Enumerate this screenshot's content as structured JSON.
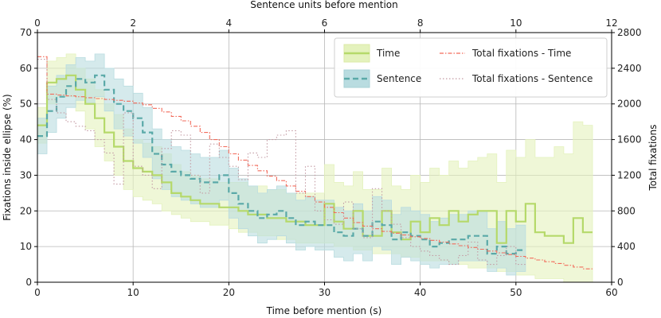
{
  "chart_data": {
    "type": "line",
    "grid": true,
    "legend_position": "top-right",
    "colors": {
      "time": "#b5d96a",
      "time_band": "#e4f2bd",
      "sentence": "#5aa9a8",
      "sentence_band": "#b9dce0",
      "total_time": "#f26b5b",
      "total_sentence": "#c39aa3",
      "grid": "#b8b8b8"
    },
    "axes": {
      "bottom": {
        "label": "Time before mention (s)",
        "range": [
          0,
          60
        ],
        "ticks": [
          0,
          10,
          20,
          30,
          40,
          50,
          60
        ]
      },
      "top": {
        "label": "Sentence units before mention",
        "range": [
          0,
          12
        ],
        "ticks": [
          0,
          2,
          4,
          6,
          8,
          10,
          12
        ]
      },
      "left": {
        "label": "Fixations inside ellipse (%)",
        "range": [
          0,
          70
        ],
        "ticks": [
          0,
          10,
          20,
          30,
          40,
          50,
          60,
          70
        ]
      },
      "right": {
        "label": "Total fixations",
        "range": [
          0,
          2800
        ],
        "ticks": [
          0,
          400,
          800,
          1200,
          1600,
          2000,
          2400,
          2800
        ]
      }
    },
    "legend": [
      {
        "key": "time",
        "label": "Time"
      },
      {
        "key": "sentence",
        "label": "Sentence"
      },
      {
        "key": "total_time",
        "label": "Total fixations - Time"
      },
      {
        "key": "total_sentence",
        "label": "Total fixations - Sentence"
      }
    ],
    "series": [
      {
        "name": "Time",
        "axis": "bottom-left",
        "step": true,
        "x": [
          0,
          1,
          2,
          3,
          4,
          5,
          6,
          7,
          8,
          9,
          10,
          11,
          12,
          13,
          14,
          15,
          16,
          17,
          18,
          19,
          20,
          21,
          22,
          23,
          24,
          25,
          26,
          27,
          28,
          29,
          30,
          31,
          32,
          33,
          34,
          35,
          36,
          37,
          38,
          39,
          40,
          41,
          42,
          43,
          44,
          45,
          46,
          47,
          48,
          49,
          50,
          51,
          52,
          53,
          54,
          55,
          56,
          57
        ],
        "values": [
          44,
          56,
          57,
          58,
          54,
          50,
          46,
          42,
          38,
          34,
          32,
          31,
          30,
          28,
          25,
          24,
          23,
          22,
          22,
          21,
          21,
          20,
          19,
          19,
          18,
          18,
          17,
          17,
          16,
          16,
          22,
          17,
          15,
          20,
          13,
          13,
          20,
          14,
          12,
          17,
          14,
          18,
          16,
          20,
          17,
          19,
          20,
          20,
          11,
          20,
          17,
          22,
          14,
          13,
          13,
          11,
          18,
          14
        ],
        "lower": [
          39,
          50,
          52,
          52,
          48,
          43,
          38,
          34,
          30,
          26,
          24,
          23,
          22,
          20,
          19,
          18,
          17,
          17,
          16,
          16,
          15,
          14,
          14,
          13,
          13,
          12,
          12,
          11,
          11,
          11,
          11,
          10,
          10,
          9,
          9,
          8,
          8,
          8,
          7,
          7,
          6,
          6,
          6,
          5,
          5,
          4,
          4,
          4,
          3,
          3,
          2,
          2,
          1,
          1,
          1,
          0,
          0,
          0
        ],
        "upper": [
          49,
          62,
          63,
          64,
          60,
          57,
          54,
          50,
          47,
          43,
          40,
          39,
          38,
          36,
          33,
          31,
          30,
          29,
          29,
          28,
          28,
          28,
          27,
          27,
          26,
          26,
          25,
          25,
          25,
          25,
          33,
          28,
          27,
          31,
          26,
          26,
          32,
          27,
          26,
          30,
          28,
          32,
          30,
          34,
          32,
          34,
          35,
          36,
          28,
          37,
          35,
          40,
          35,
          35,
          38,
          36,
          45,
          44
        ]
      },
      {
        "name": "Sentence",
        "axis": "top-left",
        "step": true,
        "x": [
          0,
          0.2,
          0.4,
          0.6,
          0.8,
          1.0,
          1.2,
          1.4,
          1.6,
          1.8,
          2.0,
          2.2,
          2.4,
          2.6,
          2.8,
          3.0,
          3.2,
          3.4,
          3.6,
          3.8,
          4.0,
          4.2,
          4.4,
          4.6,
          4.8,
          5.0,
          5.2,
          5.4,
          5.6,
          5.8,
          6.0,
          6.2,
          6.4,
          6.6,
          6.8,
          7.0,
          7.2,
          7.4,
          7.6,
          7.8,
          8.0,
          8.2,
          8.4,
          8.6,
          8.8,
          9.0,
          9.2,
          9.4,
          9.6,
          9.8,
          10.0
        ],
        "values": [
          41,
          48,
          52,
          55,
          57,
          56,
          58,
          54,
          50,
          48,
          46,
          42,
          36,
          33,
          31,
          30,
          29,
          28,
          28,
          30,
          25,
          22,
          20,
          18,
          19,
          20,
          18,
          16,
          17,
          16,
          16,
          14,
          13,
          15,
          13,
          17,
          16,
          12,
          14,
          13,
          12,
          10,
          11,
          12,
          12,
          13,
          13,
          8,
          10,
          8,
          9
        ],
        "lower": [
          36,
          42,
          46,
          49,
          51,
          50,
          52,
          48,
          43,
          41,
          39,
          35,
          29,
          26,
          24,
          23,
          22,
          21,
          21,
          23,
          18,
          15,
          13,
          11,
          12,
          13,
          11,
          9,
          10,
          9,
          9,
          7,
          6,
          8,
          6,
          10,
          9,
          5,
          7,
          6,
          5,
          4,
          5,
          5,
          6,
          6,
          6,
          3,
          4,
          2,
          3
        ],
        "upper": [
          46,
          55,
          58,
          61,
          63,
          62,
          64,
          60,
          57,
          55,
          53,
          49,
          43,
          40,
          38,
          37,
          36,
          35,
          35,
          37,
          32,
          29,
          27,
          25,
          26,
          27,
          25,
          23,
          24,
          23,
          23,
          21,
          20,
          22,
          20,
          24,
          23,
          19,
          21,
          20,
          19,
          17,
          18,
          19,
          19,
          20,
          20,
          15,
          17,
          15,
          16
        ]
      },
      {
        "name": "Total fixations - Time",
        "axis": "bottom-right",
        "step": true,
        "x": [
          0,
          1,
          2,
          3,
          4,
          5,
          6,
          7,
          8,
          9,
          10,
          11,
          12,
          13,
          14,
          15,
          16,
          17,
          18,
          19,
          20,
          21,
          22,
          23,
          24,
          25,
          26,
          27,
          28,
          29,
          30,
          31,
          32,
          33,
          34,
          35,
          36,
          37,
          38,
          39,
          40,
          41,
          42,
          43,
          44,
          45,
          46,
          47,
          48,
          49,
          50,
          51,
          52,
          53,
          54,
          55,
          56,
          57
        ],
        "values": [
          2530,
          2110,
          2100,
          2090,
          2080,
          2070,
          2060,
          2050,
          2040,
          2030,
          2010,
          1990,
          1950,
          1910,
          1860,
          1810,
          1750,
          1680,
          1600,
          1520,
          1440,
          1370,
          1310,
          1250,
          1190,
          1140,
          1080,
          1020,
          960,
          900,
          840,
          780,
          720,
          670,
          630,
          600,
          570,
          550,
          530,
          510,
          490,
          470,
          450,
          430,
          410,
          390,
          370,
          350,
          330,
          310,
          290,
          270,
          250,
          230,
          210,
          190,
          170,
          150
        ]
      },
      {
        "name": "Total fixations - Sentence",
        "axis": "top-right",
        "step": true,
        "x": [
          0,
          0.2,
          0.4,
          0.6,
          0.8,
          1.0,
          1.2,
          1.4,
          1.6,
          1.8,
          2.0,
          2.2,
          2.4,
          2.6,
          2.8,
          3.0,
          3.2,
          3.4,
          3.6,
          3.8,
          4.0,
          4.2,
          4.4,
          4.6,
          4.8,
          5.0,
          5.2,
          5.4,
          5.6,
          5.8,
          6.0,
          6.2,
          6.4,
          6.6,
          6.8,
          7.0,
          7.2,
          7.4,
          7.6,
          7.8,
          8.0,
          8.2,
          8.4,
          8.6,
          8.8,
          9.0,
          9.2,
          9.4,
          9.6,
          9.8,
          10.0
        ],
        "values": [
          2500,
          2050,
          1900,
          1800,
          1750,
          1700,
          1600,
          1450,
          1100,
          1900,
          1300,
          1200,
          1050,
          1500,
          1700,
          1650,
          1200,
          1000,
          1550,
          1400,
          1300,
          1150,
          1450,
          1400,
          1600,
          1650,
          1700,
          1000,
          1300,
          800,
          700,
          650,
          900,
          600,
          500,
          1050,
          800,
          650,
          500,
          400,
          350,
          300,
          250,
          200,
          300,
          450,
          250,
          200,
          300,
          400,
          200
        ]
      }
    ]
  }
}
